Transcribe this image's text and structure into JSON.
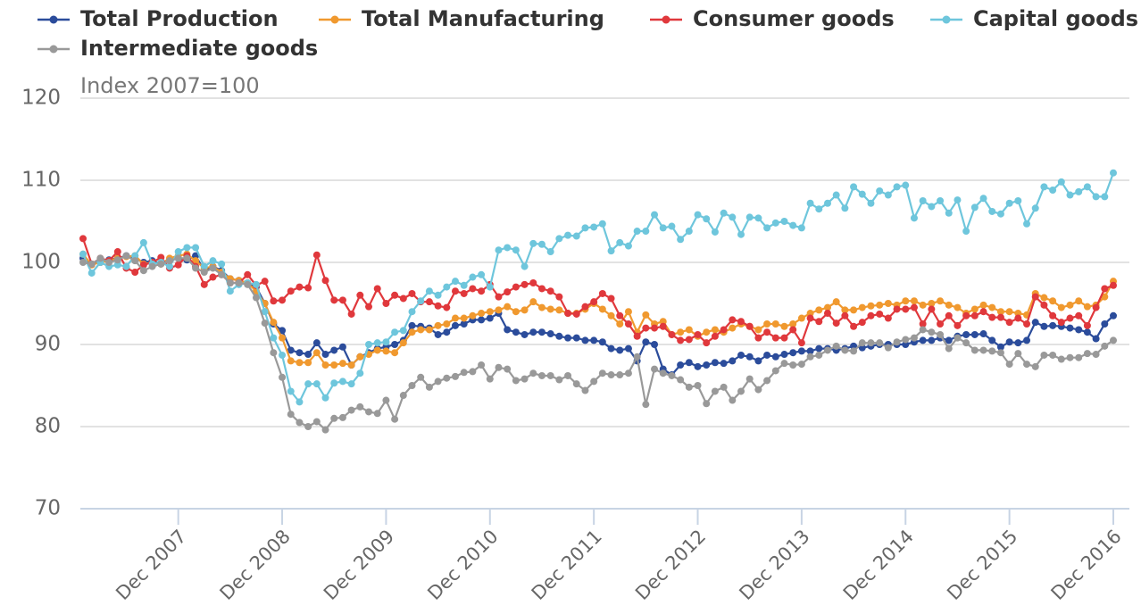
{
  "chart_data": {
    "type": "line",
    "subtitle": "Index 2007=100",
    "categories": [
      null,
      null,
      null,
      null,
      null,
      null,
      null,
      null,
      null,
      null,
      null,
      "Dec 2007",
      null,
      null,
      null,
      null,
      null,
      null,
      null,
      null,
      null,
      null,
      null,
      "Dec 2008",
      null,
      null,
      null,
      null,
      null,
      null,
      null,
      null,
      null,
      null,
      null,
      "Dec 2009",
      null,
      null,
      null,
      null,
      null,
      null,
      null,
      null,
      null,
      null,
      null,
      "Dec 2010",
      null,
      null,
      null,
      null,
      null,
      null,
      null,
      null,
      null,
      null,
      null,
      "Dec 2011",
      null,
      null,
      null,
      null,
      null,
      null,
      null,
      null,
      null,
      null,
      null,
      "Dec 2012",
      null,
      null,
      null,
      null,
      null,
      null,
      null,
      null,
      null,
      null,
      null,
      "Dec 2013",
      null,
      null,
      null,
      null,
      null,
      null,
      null,
      null,
      null,
      null,
      null,
      "Dec 2014",
      null,
      null,
      null,
      null,
      null,
      null,
      null,
      null,
      null,
      null,
      null,
      "Dec 2015",
      null,
      null,
      null,
      null,
      null,
      null,
      null,
      null,
      null,
      null,
      null,
      "Dec 2016"
    ],
    "ylim": [
      70,
      120
    ],
    "yticks": [
      70,
      80,
      90,
      100,
      110,
      120
    ],
    "grid": true,
    "series": [
      {
        "name": "Total Production",
        "color": "#2b4c9b",
        "values": [
          100.5,
          99.8,
          100,
          100.3,
          100.5,
          100.8,
          100.5,
          100,
          100.2,
          99.8,
          100.3,
          100.5,
          100.3,
          100.8,
          99,
          99.5,
          99,
          98,
          97.8,
          97.5,
          97,
          95,
          92.5,
          91.7,
          89.3,
          89,
          88.8,
          90.2,
          88.8,
          89.3,
          89.7,
          87.5,
          88.5,
          89,
          89.5,
          89.7,
          90,
          90.5,
          92.3,
          92.2,
          92,
          91.2,
          91.5,
          92.3,
          92.5,
          93,
          93,
          93.2,
          93.8,
          91.8,
          91.5,
          91.2,
          91.5,
          91.5,
          91.3,
          91,
          90.8,
          90.8,
          90.5,
          90.5,
          90.3,
          89.5,
          89.3,
          89.5,
          88,
          90.3,
          90,
          87,
          86.3,
          87.5,
          87.8,
          87.3,
          87.5,
          87.8,
          87.7,
          88,
          88.7,
          88.5,
          88,
          88.7,
          88.5,
          88.8,
          89,
          89.2,
          89.2,
          89.5,
          89.5,
          89.3,
          89.5,
          89.8,
          89.6,
          89.8,
          90,
          90,
          90,
          90,
          90.3,
          90.5,
          90.5,
          90.8,
          90.5,
          91,
          91.2,
          91.2,
          91.3,
          90.5,
          89.7,
          90.3,
          90.2,
          90.5,
          92.7,
          92.2,
          92.3,
          92.2,
          92,
          91.8,
          91.5,
          90.7,
          92.5,
          93.5
        ]
      },
      {
        "name": "Total Manufacturing",
        "color": "#f0992f",
        "values": [
          101,
          99.7,
          100,
          100.2,
          100.5,
          100.7,
          100.8,
          99.8,
          100,
          99.8,
          100.5,
          100.8,
          101,
          100.2,
          99.3,
          99.5,
          98.8,
          98,
          97.8,
          97.5,
          96.5,
          95,
          92.7,
          90.8,
          88,
          87.8,
          87.8,
          89,
          87.5,
          87.5,
          87.7,
          87.5,
          88.5,
          88.8,
          89.3,
          89.2,
          89,
          90.2,
          91.5,
          91.8,
          91.8,
          92.3,
          92.5,
          93.2,
          93.2,
          93.5,
          93.8,
          94,
          94.2,
          94.6,
          94,
          94.2,
          95.2,
          94.5,
          94.3,
          94.2,
          93.8,
          93.8,
          94.3,
          95,
          94.3,
          93.5,
          92.5,
          94,
          91.5,
          93.6,
          92.5,
          92.8,
          91.2,
          91.5,
          91.8,
          91,
          91.5,
          91.8,
          91.5,
          92,
          92.5,
          92.2,
          91.8,
          92.5,
          92.5,
          92.2,
          92.5,
          93.2,
          93.8,
          94.2,
          94.5,
          95.2,
          94.2,
          94.2,
          94.5,
          94.7,
          94.8,
          95,
          94.8,
          95.3,
          95.3,
          94.8,
          95,
          95.3,
          94.8,
          94.5,
          93.8,
          94.3,
          94.8,
          94.5,
          94,
          94,
          93.8,
          93.6,
          96.2,
          95.7,
          95.3,
          94.5,
          94.8,
          95.3,
          94.6,
          94.8,
          95.8,
          97.7
        ]
      },
      {
        "name": "Consumer goods",
        "color": "#e0383c",
        "values": [
          102.9,
          99.8,
          100.5,
          100.2,
          101.3,
          99.3,
          98.8,
          99.7,
          100,
          100.6,
          99.3,
          99.7,
          100.8,
          99.5,
          97.3,
          98.2,
          98.5,
          97.5,
          97.5,
          98.5,
          97.2,
          97.7,
          95.3,
          95.4,
          96.5,
          97,
          96.9,
          100.9,
          97.8,
          95.4,
          95.4,
          93.7,
          96,
          94.6,
          96.8,
          95,
          96,
          95.6,
          96.2,
          95.2,
          95.2,
          94.7,
          94.5,
          96.5,
          96.2,
          96.8,
          96.5,
          97.3,
          95.8,
          96.4,
          97,
          97.3,
          97.5,
          96.8,
          96.5,
          95.8,
          93.8,
          93.7,
          94.6,
          95.2,
          96.2,
          95.6,
          93.5,
          92.5,
          91,
          92,
          92,
          92.2,
          91.2,
          90.5,
          90.6,
          91.2,
          90.2,
          91,
          91.8,
          93,
          92.8,
          92.2,
          90.8,
          91.5,
          90.8,
          90.8,
          91.8,
          90.2,
          93.2,
          92.8,
          93.8,
          92.6,
          93.5,
          92.2,
          92.7,
          93.5,
          93.7,
          93.2,
          94.3,
          94.3,
          94.5,
          92.5,
          94.3,
          92.5,
          93.5,
          92.3,
          93.5,
          93.5,
          94,
          93.3,
          93.3,
          92.7,
          93.2,
          92.5,
          95.8,
          94.8,
          93.5,
          92.7,
          93.2,
          93.5,
          92.3,
          94.5,
          96.8,
          97.2
        ]
      },
      {
        "name": "Capital goods",
        "color": "#6ec6dc",
        "values": [
          101,
          98.7,
          100,
          99.5,
          99.7,
          99.5,
          100.8,
          102.4,
          99.8,
          100,
          99.5,
          101.3,
          101.8,
          101.8,
          99.5,
          100.2,
          99.8,
          96.5,
          97.3,
          97.5,
          97.3,
          94,
          90.8,
          88.7,
          84.3,
          83,
          85.2,
          85.2,
          83.5,
          85.3,
          85.5,
          85.2,
          86.5,
          90,
          90.2,
          90.3,
          91.5,
          91.7,
          94,
          95.3,
          96.5,
          96,
          97,
          97.7,
          97.2,
          98.2,
          98.5,
          97,
          101.5,
          101.8,
          101.5,
          99.5,
          102.3,
          102.2,
          101.3,
          102.9,
          103.3,
          103.2,
          104.2,
          104.3,
          104.7,
          101.4,
          102.4,
          102,
          103.8,
          103.8,
          105.8,
          104.2,
          104.4,
          102.8,
          103.8,
          105.8,
          105.3,
          103.7,
          106,
          105.5,
          103.4,
          105.5,
          105.4,
          104.2,
          104.8,
          105,
          104.5,
          104.2,
          107.2,
          106.5,
          107.2,
          108.2,
          106.6,
          109.2,
          108.3,
          107.2,
          108.7,
          108.2,
          109.2,
          109.4,
          105.4,
          107.5,
          106.8,
          107.5,
          106,
          107.6,
          103.8,
          106.7,
          107.8,
          106.2,
          105.9,
          107.2,
          107.5,
          104.7,
          106.6,
          109.2,
          108.8,
          109.8,
          108.2,
          108.6,
          109.2,
          108,
          108,
          110.9
        ]
      },
      {
        "name": "Intermediate goods",
        "color": "#999999",
        "values": [
          100,
          99.8,
          100.5,
          100,
          100.3,
          100.8,
          100.2,
          99,
          99.5,
          99.8,
          100.2,
          100.5,
          100.5,
          99.3,
          98.8,
          99.3,
          98.5,
          97.5,
          97.5,
          97.3,
          95.7,
          92.6,
          89,
          86,
          81.5,
          80.5,
          80,
          80.6,
          79.6,
          81,
          81.1,
          82,
          82.4,
          81.8,
          81.6,
          83.2,
          80.9,
          83.8,
          85,
          86,
          84.8,
          85.5,
          85.9,
          86.1,
          86.6,
          86.7,
          87.5,
          85.8,
          87.2,
          87,
          85.6,
          85.8,
          86.5,
          86.2,
          86.2,
          85.7,
          86.2,
          85.2,
          84.4,
          85.5,
          86.5,
          86.3,
          86.3,
          86.5,
          88.5,
          82.7,
          87,
          86.5,
          86.2,
          85.7,
          84.8,
          85,
          82.8,
          84.3,
          84.8,
          83.2,
          84.3,
          85.8,
          84.5,
          85.6,
          86.8,
          87.7,
          87.5,
          87.6,
          88.5,
          88.7,
          89.3,
          89.8,
          89.3,
          89.2,
          90.2,
          90.2,
          90.2,
          89.6,
          90.3,
          90.6,
          90.8,
          91.8,
          91.5,
          91.2,
          89.5,
          90.8,
          90.2,
          89.3,
          89.3,
          89.2,
          89,
          87.6,
          88.9,
          87.6,
          87.3,
          88.7,
          88.7,
          88.2,
          88.4,
          88.4,
          88.9,
          88.8,
          89.8,
          90.5
        ]
      }
    ]
  }
}
